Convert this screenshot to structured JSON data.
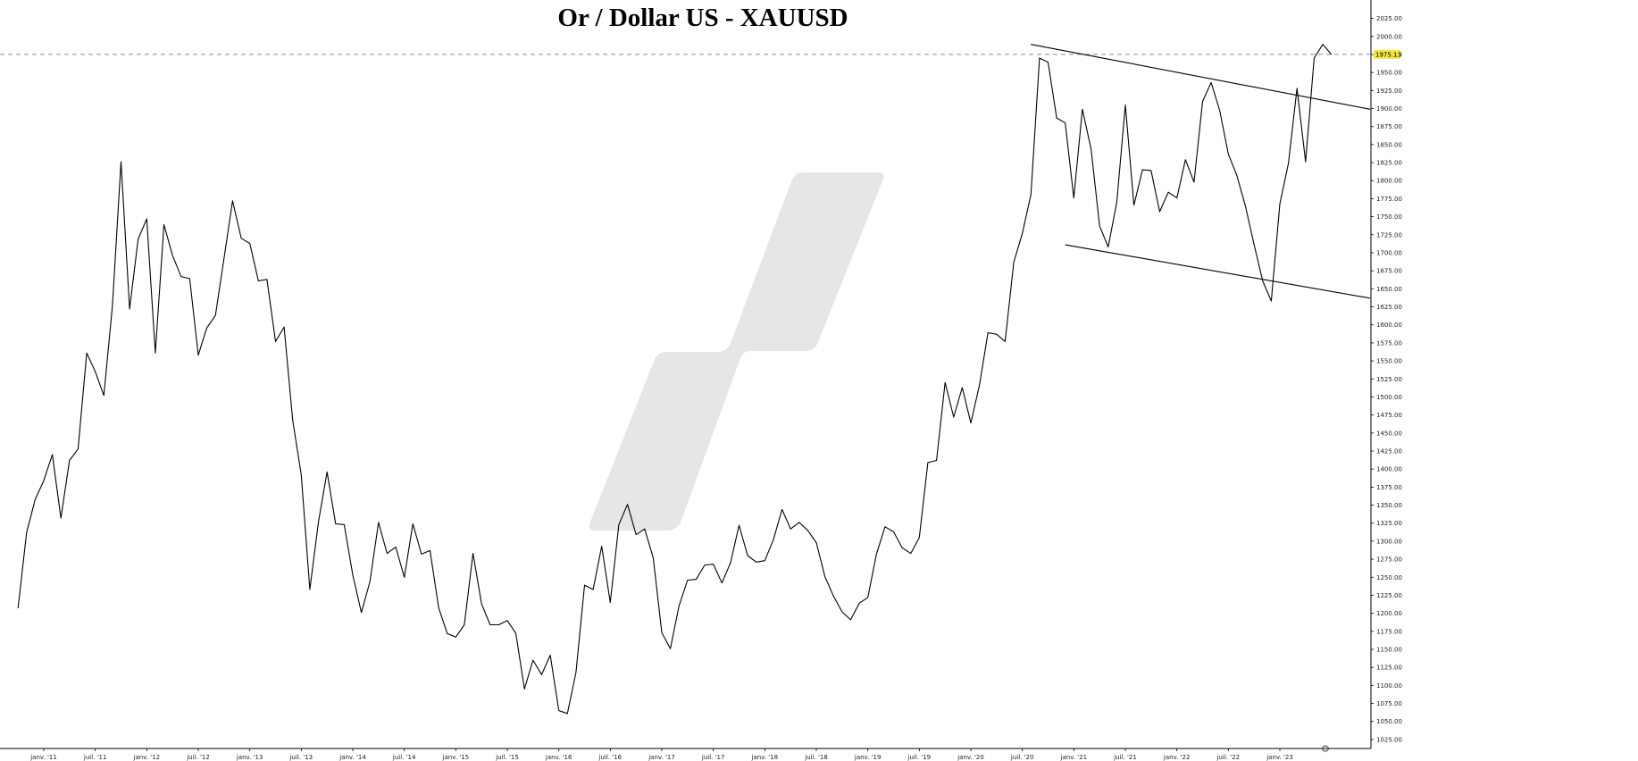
{
  "chart_data": {
    "type": "line",
    "title": "Or / Dollar US - XAUUSD",
    "xlabel": "",
    "ylabel": "",
    "ylim": [
      1012.5,
      2037.5
    ],
    "x_tick_labels": [
      "janv. '11",
      "juil. '11",
      "janv. '12",
      "juil. '12",
      "janv. '13",
      "juil. '13",
      "janv. '14",
      "juil. '14",
      "janv. '15",
      "juil. '15",
      "janv. '16",
      "juil. '16",
      "janv. '17",
      "juil. '17",
      "janv. '18",
      "juil. '18",
      "janv. '19",
      "juil. '19",
      "janv. '20",
      "juil. '20",
      "janv. '21",
      "juil. '21",
      "janv. '22",
      "juil. '22",
      "janv. '23"
    ],
    "y_tick_labels": [
      "1025.00",
      "1050.00",
      "1075.00",
      "1100.00",
      "1125.00",
      "1150.00",
      "1175.00",
      "1200.00",
      "1225.00",
      "1250.00",
      "1275.00",
      "1300.00",
      "1325.00",
      "1350.00",
      "1375.00",
      "1400.00",
      "1425.00",
      "1450.00",
      "1475.00",
      "1500.00",
      "1525.00",
      "1550.00",
      "1575.00",
      "1600.00",
      "1625.00",
      "1650.00",
      "1675.00",
      "1700.00",
      "1725.00",
      "1750.00",
      "1775.00",
      "1800.00",
      "1825.00",
      "1850.00",
      "1875.00",
      "1900.00",
      "1925.00",
      "1950.00",
      "1975.00",
      "2000.00",
      "2025.00"
    ],
    "grid": false,
    "legend": "none",
    "last_price_label": "1975.13",
    "last_price": 1975.13,
    "colors": {
      "line": "#000000",
      "last_price_highlight": "#f5e642",
      "dashed_line": "#888888",
      "watermark": "#e6e6e6"
    },
    "series": [
      {
        "frequency": "monthly",
        "start": "2010-10",
        "values": [
          1207,
          1312,
          1358,
          1384,
          1420,
          1332,
          1412,
          1428,
          1561,
          1535,
          1502,
          1627,
          1826,
          1622,
          1719,
          1747,
          1561,
          1739,
          1696,
          1667,
          1664,
          1558,
          1596,
          1613,
          1692,
          1772,
          1720,
          1713,
          1661,
          1663,
          1577,
          1597,
          1468,
          1392,
          1233,
          1327,
          1396,
          1324,
          1323,
          1253,
          1201,
          1244,
          1326,
          1283,
          1292,
          1250,
          1324,
          1282,
          1287,
          1208,
          1172,
          1167,
          1184,
          1283,
          1213,
          1184,
          1184,
          1190,
          1172,
          1095,
          1135,
          1115,
          1142,
          1065,
          1061,
          1118,
          1239,
          1233,
          1293,
          1215,
          1323,
          1351,
          1309,
          1317,
          1277,
          1173,
          1151,
          1210,
          1246,
          1247,
          1267,
          1268,
          1242,
          1270,
          1322,
          1280,
          1271,
          1273,
          1302,
          1344,
          1317,
          1326,
          1315,
          1298,
          1251,
          1224,
          1202,
          1191,
          1214,
          1222,
          1282,
          1320,
          1313,
          1291,
          1283,
          1305,
          1409,
          1412,
          1520,
          1472,
          1513,
          1464,
          1516,
          1589,
          1587,
          1577,
          1687,
          1727,
          1781,
          1970,
          1964,
          1887,
          1880,
          1776,
          1899,
          1844,
          1737,
          1708,
          1770,
          1905,
          1766,
          1815,
          1814,
          1757,
          1784,
          1776,
          1829,
          1798,
          1910,
          1936,
          1897,
          1837,
          1807,
          1764,
          1711,
          1661,
          1633,
          1768,
          1824,
          1928,
          1826,
          1970,
          1989,
          1975
        ]
      }
    ],
    "trendlines": [
      {
        "from": [
          "2020-08",
          1989
        ],
        "to": [
          "2023-12",
          1899
        ]
      },
      {
        "from": [
          "2020-12",
          1711
        ],
        "to": [
          "2024-02",
          1637
        ]
      }
    ]
  }
}
